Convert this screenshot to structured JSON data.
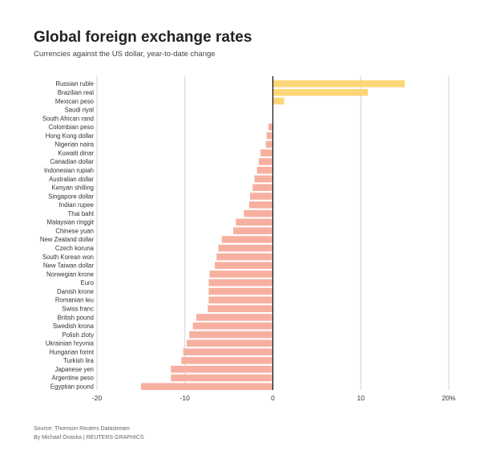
{
  "header": {
    "title": "Global foreign exchange rates",
    "subtitle": "Currencies against the US dollar, year-to-date change"
  },
  "footer": {
    "source": "Source: Thomson Reuters Datastream",
    "credit": "By Michael Ovaska | REUTERS GRAPHICS"
  },
  "colors": {
    "positive": "#fdd677",
    "negative": "#f7b0a0",
    "gridline": "#d0d0d0",
    "zero_line": "#111111",
    "label_text": "#333333"
  },
  "chart_data": {
    "type": "bar",
    "orientation": "horizontal",
    "title": "Global foreign exchange rates",
    "subtitle": "Currencies against the US dollar, year-to-date change",
    "xlim": [
      -20,
      20
    ],
    "x_ticks": [
      -20,
      -10,
      0,
      10,
      20
    ],
    "x_tick_labels": [
      "-20",
      "-10",
      "0",
      "10",
      "20%"
    ],
    "grid": true,
    "categories": [
      "Russian ruble",
      "Brazilian real",
      "Mexican peso",
      "Saudi riyal",
      "South African rand",
      "Colombian peso",
      "Hong Kong dollar",
      "Nigerian naira",
      "Kuwaiti dinar",
      "Canadian dollar",
      "Indonesian rupiah",
      "Australian dollar",
      "Kenyan shilling",
      "Singapore dollar",
      "Indian rupee",
      "Thai baht",
      "Malaysian ringgit",
      "Chinese yuan",
      "New Zealand dollar",
      "Czech koruna",
      "South Korean won",
      "New Taiwan dollar",
      "Norwegian krone",
      "Euro",
      "Danish krone",
      "Romanian leu",
      "Swiss franc",
      "British pound",
      "Swedish krona",
      "Polish zloty",
      "Ukrainian hryvnia",
      "Hungarian forint",
      "Turkish lira",
      "Japanese yen",
      "Argentine peso",
      "Egyptian pound"
    ],
    "values": [
      15.0,
      10.8,
      1.3,
      0.0,
      0.0,
      -0.5,
      -0.7,
      -0.8,
      -1.4,
      -1.6,
      -1.8,
      -2.1,
      -2.3,
      -2.6,
      -2.7,
      -3.3,
      -4.2,
      -4.5,
      -5.8,
      -6.2,
      -6.4,
      -6.6,
      -7.2,
      -7.3,
      -7.3,
      -7.3,
      -7.4,
      -8.7,
      -9.1,
      -9.5,
      -9.8,
      -10.2,
      -10.4,
      -11.6,
      -11.6,
      -15.0
    ]
  }
}
